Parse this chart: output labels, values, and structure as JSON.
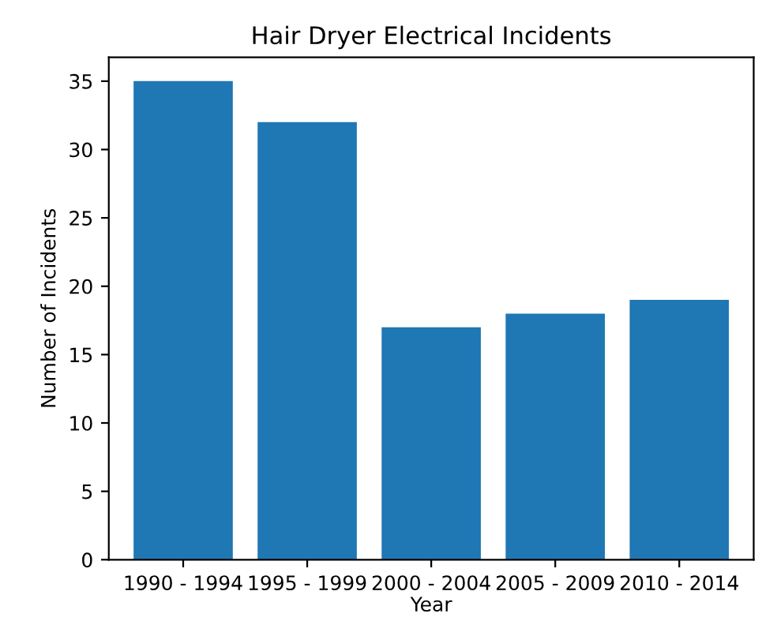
{
  "chart_data": {
    "type": "bar",
    "title": "Hair Dryer Electrical Incidents",
    "xlabel": "Year",
    "ylabel": "Number of Incidents",
    "categories": [
      "1990 - 1994",
      "1995 - 1999",
      "2000 - 2004",
      "2005 - 2009",
      "2010 - 2014"
    ],
    "values": [
      35,
      32,
      17,
      18,
      19
    ],
    "color": "#1f77b4",
    "ylim": [
      0,
      36.75
    ],
    "yticks": [
      0,
      5,
      10,
      15,
      20,
      25,
      30,
      35
    ],
    "grid": false,
    "legend": false
  }
}
